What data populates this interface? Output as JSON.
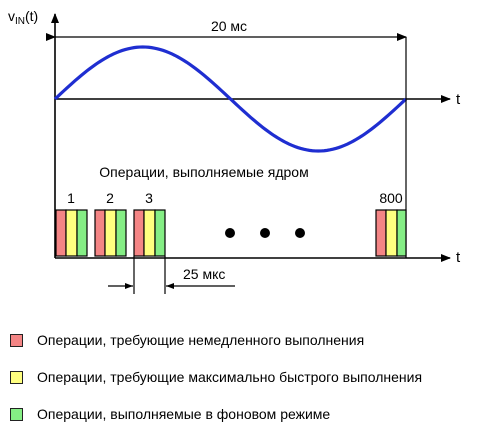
{
  "signal": {
    "axis_label_main": "v",
    "axis_label_sub": "IN",
    "axis_label_tail": "(t)",
    "period_label": "20 мс",
    "time_label": "t"
  },
  "timeline": {
    "title": "Операции, выполняемые ядром",
    "time_label": "t",
    "interval_label": "25 мкс",
    "blocks": [
      {
        "label": "1"
      },
      {
        "label": "2"
      },
      {
        "label": "3"
      },
      {
        "label": "800"
      }
    ],
    "ellipsis_dots": 3
  },
  "colors": {
    "immediate": "#f48585",
    "fastest": "#ffff80",
    "background": "#85ee85",
    "sine": "#1f2ed1",
    "lines": "#000000"
  },
  "legend": [
    {
      "label": "Операции, требующие немедленного выполнения",
      "color_key": "immediate"
    },
    {
      "label": "Операции, требующие максимально быстрого выполнения",
      "color_key": "fastest"
    },
    {
      "label": "Операции, выполняемые в фоновом режиме",
      "color_key": "background"
    }
  ]
}
